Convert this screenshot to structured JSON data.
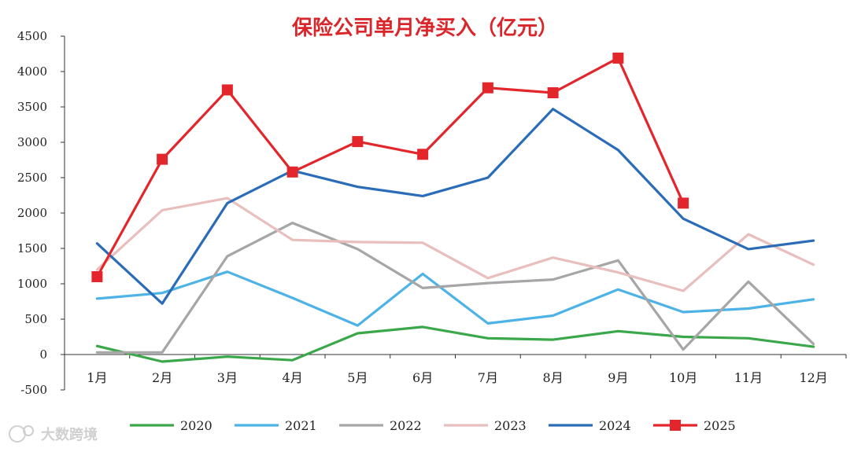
{
  "chart_data": {
    "type": "line",
    "title": "保险公司单月净买入（亿元）",
    "categories": [
      "1月",
      "2月",
      "3月",
      "4月",
      "5月",
      "6月",
      "7月",
      "8月",
      "9月",
      "10月",
      "11月",
      "12月"
    ],
    "ylim": [
      -500,
      4500
    ],
    "yticks": [
      -500,
      0,
      500,
      1000,
      1500,
      2000,
      2500,
      3000,
      3500,
      4000,
      4500
    ],
    "grid": false,
    "legend": "bottom",
    "series": [
      {
        "name": "2020",
        "color": "#3aa84a",
        "values": [
          120,
          -100,
          -30,
          -80,
          300,
          390,
          230,
          210,
          330,
          250,
          230,
          110
        ]
      },
      {
        "name": "2021",
        "color": "#4db3e6",
        "values": [
          790,
          870,
          1170,
          800,
          410,
          1140,
          440,
          550,
          920,
          600,
          650,
          780
        ]
      },
      {
        "name": "2022",
        "color": "#a6a6a6",
        "values": [
          30,
          30,
          1390,
          1860,
          1490,
          940,
          1010,
          1060,
          1330,
          70,
          1030,
          150
        ]
      },
      {
        "name": "2023",
        "color": "#e8bfbd",
        "values": [
          1200,
          2040,
          2210,
          1620,
          1590,
          1580,
          1080,
          1370,
          1160,
          900,
          1700,
          1270
        ]
      },
      {
        "name": "2024",
        "color": "#2b6cb8",
        "values": [
          1570,
          720,
          2140,
          2600,
          2370,
          2240,
          2500,
          3470,
          2890,
          1920,
          1490,
          1610
        ]
      },
      {
        "name": "2025",
        "color": "#e2262b",
        "marker": "square",
        "values": [
          1100,
          2760,
          3740,
          2580,
          3010,
          2830,
          3770,
          3700,
          4190,
          2140,
          null,
          null
        ]
      }
    ]
  },
  "watermark": {
    "text": "大数跨境"
  }
}
